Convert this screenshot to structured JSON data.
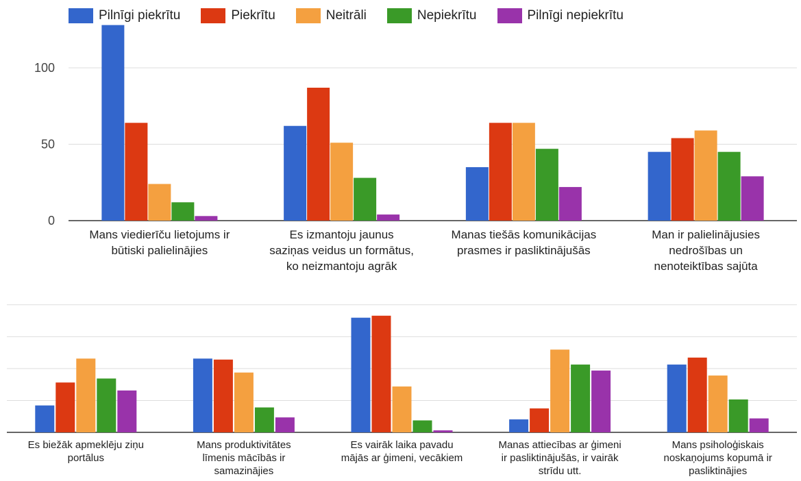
{
  "colors": [
    "#3366cc",
    "#dc3912",
    "#f4a040",
    "#3a9a28",
    "#9933aa"
  ],
  "legend": [
    "Pilnīgi piekrītu",
    "Piekrītu",
    "Neitrāli",
    "Nepiekrītu",
    "Pilnīgi nepiekrītu"
  ],
  "chart_data": [
    {
      "type": "bar",
      "legend_position": "top",
      "grid": true,
      "ylim": [
        0,
        120
      ],
      "yticks": [
        0,
        50,
        100
      ],
      "categories": [
        [
          "Mans viedierīču lietojums ir",
          "būtiski palielinājies"
        ],
        [
          "Es izmantoju jaunus",
          "saziņas veidus un formātus,",
          "ko neizmantoju agrāk"
        ],
        [
          "Manas tiešās komunikācijas",
          "prasmes ir pasliktinājušās"
        ],
        [
          "Man ir palielinājusies",
          "nedrošības un",
          "nenoteiktības sajūta"
        ]
      ],
      "series": [
        {
          "name": "Pilnīgi piekrītu",
          "values": [
            128,
            62,
            35,
            45
          ]
        },
        {
          "name": "Piekrītu",
          "values": [
            64,
            87,
            64,
            54
          ]
        },
        {
          "name": "Neitrāli",
          "values": [
            24,
            51,
            64,
            59
          ]
        },
        {
          "name": "Nepiekrītu",
          "values": [
            12,
            28,
            47,
            45
          ]
        },
        {
          "name": "Pilnīgi nepiekrītu",
          "values": [
            3,
            4,
            22,
            29
          ]
        }
      ]
    },
    {
      "type": "bar",
      "grid": true,
      "ylim": [
        0,
        130
      ],
      "categories": [
        [
          "Es biežāk apmeklēju ziņu",
          "portālus"
        ],
        [
          "Mans produktivitātes",
          "līmenis mācībās ir",
          "samazinājies"
        ],
        [
          "Es vairāk laika pavadu",
          "mājās ar ģimeni, vecākiem"
        ],
        [
          "Manas attiecības ar ģimeni",
          "ir pasliktinājušās, ir vairāk",
          "strīdu utt."
        ],
        [
          "Mans psiholoģiskais",
          "noskaņojums kopumā ir",
          "pasliktinājies"
        ]
      ],
      "series": [
        {
          "name": "Pilnīgi piekrītu",
          "values": [
            27,
            74,
            115,
            13,
            68
          ]
        },
        {
          "name": "Piekrītu",
          "values": [
            50,
            73,
            117,
            24,
            75
          ]
        },
        {
          "name": "Neitrāli",
          "values": [
            74,
            60,
            46,
            83,
            57
          ]
        },
        {
          "name": "Nepiekrītu",
          "values": [
            54,
            25,
            12,
            68,
            33
          ]
        },
        {
          "name": "Pilnīgi nepiekrītu",
          "values": [
            42,
            15,
            2,
            62,
            14
          ]
        }
      ]
    }
  ]
}
